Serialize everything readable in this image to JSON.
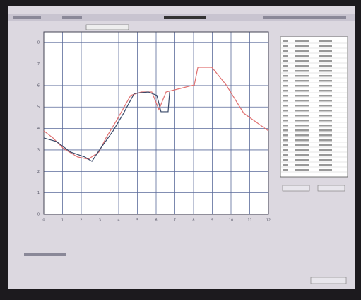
{
  "chart_data": {
    "type": "line",
    "xlim": [
      0,
      12
    ],
    "xticks": [
      0,
      1,
      2,
      3,
      4,
      5,
      6,
      7,
      8,
      9,
      10,
      11,
      12
    ],
    "ylim": [
      0,
      8.5
    ],
    "yticks": [
      0,
      1,
      2,
      3,
      4,
      5,
      6,
      7,
      8
    ],
    "grid": true,
    "series": [
      {
        "color": "#e07070",
        "x": [
          0,
          0.49,
          1.06,
          1.81,
          2.38,
          2.94,
          3.32,
          3.89,
          4.64,
          5.21,
          5.77,
          6.15,
          6.53,
          7.28,
          8.04,
          8.23,
          8.98,
          9.74,
          10.68,
          12
        ],
        "values": [
          3.89,
          3.56,
          3.06,
          2.67,
          2.57,
          2.9,
          3.56,
          4.38,
          5.54,
          5.7,
          5.7,
          4.88,
          5.7,
          5.86,
          6.03,
          6.85,
          6.85,
          6.03,
          4.71,
          3.89
        ]
      },
      {
        "color": "#3a4a6a",
        "x": [
          0,
          0.68,
          1.43,
          2.19,
          2.57,
          3.02,
          3.7,
          4.26,
          4.83,
          5.58,
          6.04,
          6.26,
          6.64,
          6.72
        ],
        "values": [
          3.56,
          3.39,
          2.9,
          2.67,
          2.47,
          3.06,
          3.89,
          4.71,
          5.63,
          5.7,
          5.54,
          4.78,
          4.78,
          5.7
        ]
      }
    ]
  }
}
